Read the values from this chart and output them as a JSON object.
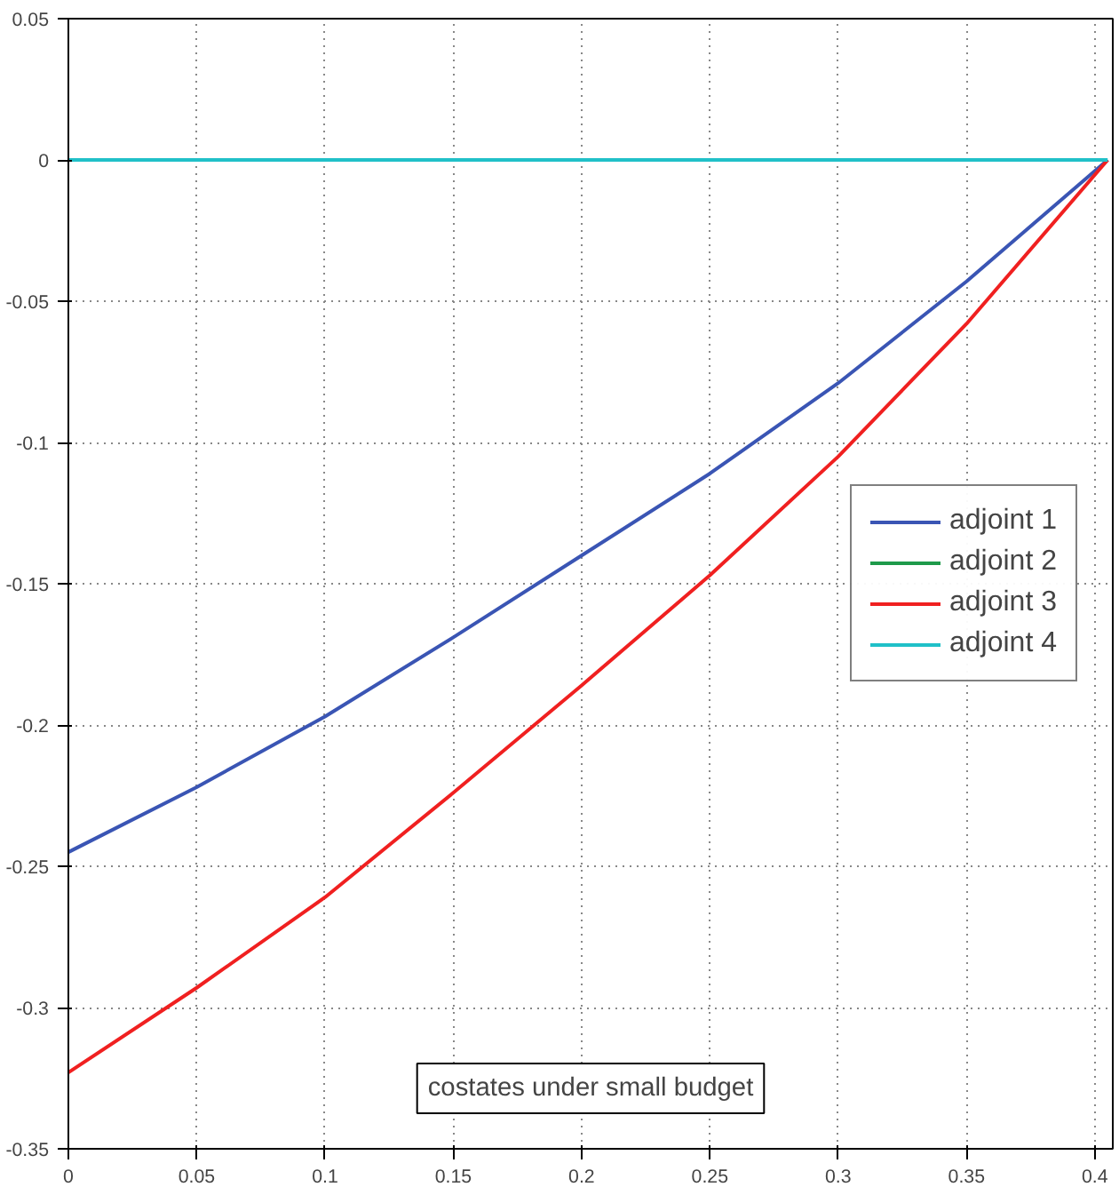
{
  "chart_data": {
    "type": "line",
    "x": [
      0,
      0.05,
      0.1,
      0.15,
      0.2,
      0.25,
      0.3,
      0.35,
      0.405
    ],
    "series": [
      {
        "name": "adjoint 1",
        "color": "#3a55b4",
        "values": [
          -0.245,
          -0.222,
          -0.197,
          -0.169,
          -0.14,
          -0.111,
          -0.079,
          -0.043,
          0
        ]
      },
      {
        "name": "adjoint 2",
        "color": "#1e9a4a",
        "values": [
          null,
          null,
          null,
          null,
          null,
          null,
          null,
          null,
          null
        ]
      },
      {
        "name": "adjoint 3",
        "color": "#f02020",
        "values": [
          -0.323,
          -0.293,
          -0.261,
          -0.224,
          -0.186,
          -0.147,
          -0.105,
          -0.058,
          0
        ]
      },
      {
        "name": "adjoint 4",
        "color": "#20c0c8",
        "values": [
          0,
          0,
          0,
          0,
          0,
          0,
          0,
          0,
          0
        ]
      }
    ],
    "xlim": [
      0,
      0.407
    ],
    "ylim": [
      -0.35,
      0.05
    ],
    "xticks": [
      0,
      0.05,
      0.1,
      0.15,
      0.2,
      0.25,
      0.3,
      0.35,
      0.4
    ],
    "yticks": [
      -0.35,
      -0.3,
      -0.25,
      -0.2,
      -0.15,
      -0.1,
      -0.05,
      0,
      0.05
    ],
    "grid": true,
    "legend": "right",
    "line_style": "solid",
    "annotations": [
      "costates under small budget"
    ]
  }
}
